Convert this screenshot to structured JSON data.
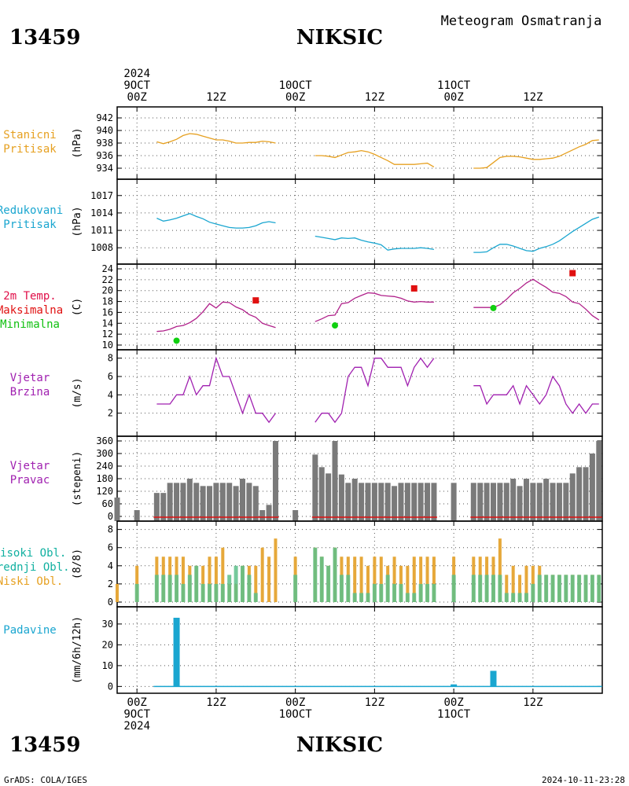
{
  "header": {
    "station_id": "13459",
    "station_name": "NIKSIC",
    "title": "Meteogram Osmatranja"
  },
  "footer": {
    "station_id": "13459",
    "station_name": "NIKSIC",
    "credit": "GrADS: COLA/IGES",
    "timestamp": "2024-10-11-23:28"
  },
  "time_axis": {
    "top_labels": [
      {
        "lines": [
          "2024",
          "9OCT",
          "00Z"
        ],
        "hour": 0
      },
      {
        "lines": [
          "12Z"
        ],
        "hour": 12
      },
      {
        "lines": [
          "10OCT",
          "00Z"
        ],
        "hour": 24
      },
      {
        "lines": [
          "12Z"
        ],
        "hour": 36
      },
      {
        "lines": [
          "11OCT",
          "00Z"
        ],
        "hour": 48
      },
      {
        "lines": [
          "12Z"
        ],
        "hour": 60
      }
    ],
    "bottom_labels": [
      {
        "lines": [
          "00Z",
          "9OCT",
          "2024"
        ],
        "hour": 0
      },
      {
        "lines": [
          "12Z"
        ],
        "hour": 12
      },
      {
        "lines": [
          "00Z",
          "10OCT"
        ],
        "hour": 24
      },
      {
        "lines": [
          "12Z"
        ],
        "hour": 36
      },
      {
        "lines": [
          "00Z",
          "11OCT"
        ],
        "hour": 48
      },
      {
        "lines": [
          "12Z"
        ],
        "hour": 60
      }
    ],
    "range_hours": [
      -3,
      70.5
    ]
  },
  "panels": {
    "pressure": {
      "labels": [
        "Stanicni",
        "Pritisak"
      ],
      "unit": "(hPa)",
      "color": "#e6a020"
    },
    "slp": {
      "labels": [
        "Redukovani",
        "Pritisak"
      ],
      "unit": "(hPa)",
      "color": "#1aa6d0"
    },
    "temp": {
      "labels": [
        "2m Temp.",
        "Maksimalna",
        "Minimalna"
      ],
      "unit": "(C)",
      "colors": [
        "#e0104a",
        "#e01010",
        "#10c010"
      ],
      "line_color": "#b0208a"
    },
    "wspd": {
      "labels": [
        "Vjetar",
        "Brzina"
      ],
      "unit": "(m/s)",
      "color": "#a020b0"
    },
    "wdir": {
      "labels": [
        "Vjetar",
        "Pravac"
      ],
      "unit": "(stepeni)",
      "color": "#a020b0"
    },
    "cloud": {
      "labels": [
        "Visoki Obl.",
        "Srednji Obl.",
        "Niski Obl."
      ],
      "unit": "(8/8)",
      "colors": [
        "#10b0a0",
        "#10b0a0",
        "#e6a020"
      ]
    },
    "precip": {
      "labels": [
        "Padavine"
      ],
      "unit": "(mm/6h/12h)",
      "color": "#1aa6d0"
    }
  },
  "chart_data": [
    {
      "type": "line",
      "name": "Stanicni Pritisak",
      "ylabel": "(hPa)",
      "ylim": [
        933,
        943
      ],
      "yticks": [
        934,
        936,
        938,
        940,
        942
      ],
      "segments": [
        {
          "x": [
            3,
            4,
            5,
            6,
            7,
            8,
            9,
            10,
            11,
            12,
            13,
            14,
            15,
            16,
            17,
            18,
            19,
            20,
            21
          ],
          "y": [
            938.2,
            937.9,
            938.2,
            938.6,
            939.2,
            939.5,
            939.4,
            939.1,
            938.8,
            938.5,
            938.5,
            938.3,
            938.0,
            938.0,
            938.1,
            938.1,
            938.3,
            938.2,
            938.0
          ]
        },
        {
          "x": [
            27,
            28,
            29,
            30,
            31,
            32,
            33,
            34,
            35,
            36,
            37,
            38,
            39,
            40,
            41,
            42,
            43,
            44,
            45
          ],
          "y": [
            936.0,
            936.0,
            935.9,
            935.7,
            936.1,
            936.5,
            936.6,
            936.8,
            936.6,
            936.2,
            935.7,
            935.2,
            934.6,
            934.6,
            934.6,
            934.6,
            934.7,
            934.8,
            934.2
          ]
        },
        {
          "x": [
            51,
            52,
            53,
            54,
            55,
            56,
            57,
            58,
            59,
            60,
            61,
            62,
            63,
            64,
            65,
            66,
            67,
            68,
            69,
            70
          ],
          "y": [
            934.0,
            934.0,
            934.1,
            934.9,
            935.7,
            935.9,
            935.9,
            935.8,
            935.6,
            935.4,
            935.4,
            935.5,
            935.6,
            935.9,
            936.4,
            936.9,
            937.4,
            937.8,
            938.4,
            938.5
          ]
        }
      ]
    },
    {
      "type": "line",
      "name": "Redukovani Pritisak",
      "ylabel": "(hPa)",
      "ylim": [
        1006,
        1019
      ],
      "yticks": [
        1008,
        1011,
        1014,
        1017
      ],
      "segments": [
        {
          "x": [
            3,
            4,
            5,
            6,
            7,
            8,
            9,
            10,
            11,
            12,
            13,
            14,
            15,
            16,
            17,
            18,
            19,
            20,
            21
          ],
          "y": [
            1013.1,
            1012.6,
            1012.8,
            1013.1,
            1013.5,
            1013.9,
            1013.4,
            1013.0,
            1012.4,
            1012.1,
            1011.8,
            1011.5,
            1011.4,
            1011.4,
            1011.5,
            1011.8,
            1012.3,
            1012.5,
            1012.3
          ]
        },
        {
          "x": [
            27,
            28,
            29,
            30,
            31,
            32,
            33,
            34,
            35,
            36,
            37,
            38,
            39,
            40,
            41,
            42,
            43,
            44,
            45
          ],
          "y": [
            1010.0,
            1009.8,
            1009.6,
            1009.4,
            1009.7,
            1009.6,
            1009.7,
            1009.3,
            1009.0,
            1008.8,
            1008.5,
            1007.6,
            1007.8,
            1007.9,
            1007.9,
            1007.9,
            1008.0,
            1007.9,
            1007.7
          ]
        },
        {
          "x": [
            51,
            52,
            53,
            54,
            55,
            56,
            57,
            58,
            59,
            60,
            61,
            62,
            63,
            64,
            65,
            66,
            67,
            68,
            69,
            70
          ],
          "y": [
            1007.2,
            1007.2,
            1007.3,
            1008.0,
            1008.6,
            1008.6,
            1008.3,
            1007.9,
            1007.5,
            1007.4,
            1007.9,
            1008.2,
            1008.6,
            1009.2,
            1010.0,
            1010.8,
            1011.5,
            1012.2,
            1012.9,
            1013.3
          ]
        }
      ]
    },
    {
      "type": "line",
      "name": "2m Temp.",
      "ylabel": "(C)",
      "ylim": [
        10,
        24
      ],
      "yticks": [
        10,
        12,
        14,
        16,
        18,
        20,
        22,
        24
      ],
      "segments": [
        {
          "x": [
            3,
            4,
            5,
            6,
            7,
            8,
            9,
            10,
            11,
            12,
            13,
            14,
            15,
            16,
            17,
            18,
            19,
            20,
            21
          ],
          "y": [
            12.5,
            12.6,
            12.9,
            13.4,
            13.6,
            14.1,
            14.9,
            16.1,
            17.6,
            16.8,
            17.9,
            17.8,
            17.0,
            16.5,
            15.6,
            15.1,
            14.0,
            13.6,
            13.2
          ]
        },
        {
          "x": [
            27,
            28,
            29,
            30,
            31,
            32,
            33,
            34,
            35,
            36,
            37,
            38,
            39,
            40,
            41,
            42,
            43,
            44,
            45
          ],
          "y": [
            14.3,
            14.8,
            15.4,
            15.5,
            17.6,
            17.8,
            18.6,
            19.1,
            19.6,
            19.5,
            19.1,
            19.0,
            18.9,
            18.6,
            18.1,
            17.9,
            18.0,
            17.9,
            17.9
          ]
        },
        {
          "x": [
            51,
            52,
            53,
            54,
            55,
            56,
            57,
            58,
            59,
            60,
            61,
            62,
            63,
            64,
            65,
            66,
            67,
            68,
            69,
            70
          ],
          "y": [
            16.9,
            16.9,
            16.9,
            16.9,
            17.4,
            18.4,
            19.6,
            20.4,
            21.4,
            22.1,
            21.3,
            20.6,
            19.7,
            19.5,
            18.9,
            17.9,
            17.6,
            16.6,
            15.4,
            14.6
          ]
        }
      ],
      "max_points": [
        {
          "x": 18,
          "y": 18.2
        },
        {
          "x": 42,
          "y": 20.4
        },
        {
          "x": 66,
          "y": 23.2
        }
      ],
      "min_points": [
        {
          "x": 6,
          "y": 10.8
        },
        {
          "x": 30,
          "y": 13.6
        },
        {
          "x": 54,
          "y": 16.8
        }
      ]
    },
    {
      "type": "line",
      "name": "Vjetar Brzina",
      "ylabel": "(m/s)",
      "ylim": [
        0,
        8.4
      ],
      "yticks": [
        2,
        4,
        6,
        8
      ],
      "segments": [
        {
          "x": [
            3,
            4,
            5,
            6,
            7,
            8,
            9,
            10,
            11,
            12,
            13,
            14,
            15,
            16,
            17,
            18,
            19,
            20,
            21
          ],
          "y": [
            3,
            3,
            3,
            4,
            4,
            6,
            4,
            5,
            5,
            8,
            6,
            6,
            4,
            2,
            4,
            2,
            2,
            1,
            2
          ]
        },
        {
          "x": [
            27,
            28,
            29,
            30,
            31,
            32,
            33,
            34,
            35,
            36,
            37,
            38,
            39,
            40,
            41,
            42,
            43,
            44,
            45
          ],
          "y": [
            1,
            2,
            2,
            1,
            2,
            6,
            7,
            7,
            5,
            8,
            8,
            7,
            7,
            7,
            5,
            7,
            8,
            7,
            8
          ]
        },
        {
          "x": [
            51,
            52,
            53,
            54,
            55,
            56,
            57,
            58,
            59,
            60,
            61,
            62,
            63,
            64,
            65,
            66,
            67,
            68,
            69,
            70
          ],
          "y": [
            5,
            5,
            3,
            4,
            4,
            4,
            5,
            3,
            5,
            4,
            3,
            4,
            6,
            5,
            3,
            2,
            3,
            2,
            3,
            3
          ]
        }
      ]
    },
    {
      "type": "bar",
      "name": "Vjetar Pravac",
      "ylabel": "(stepeni)",
      "ylim": [
        0,
        360
      ],
      "yticks": [
        0,
        60,
        120,
        180,
        240,
        300,
        360
      ],
      "x": [
        -3,
        0,
        3,
        4,
        5,
        6,
        7,
        8,
        9,
        10,
        11,
        12,
        13,
        14,
        15,
        16,
        17,
        18,
        19,
        20,
        21,
        24,
        27,
        28,
        29,
        30,
        31,
        32,
        33,
        34,
        35,
        36,
        37,
        38,
        39,
        40,
        41,
        42,
        43,
        44,
        45,
        48,
        51,
        52,
        53,
        54,
        55,
        56,
        57,
        58,
        59,
        60,
        61,
        62,
        63,
        64,
        65,
        66,
        67,
        68,
        69,
        70
      ],
      "values": [
        90,
        30,
        112,
        112,
        160,
        160,
        160,
        180,
        160,
        145,
        145,
        160,
        160,
        160,
        145,
        180,
        160,
        145,
        30,
        55,
        360,
        30,
        295,
        235,
        205,
        360,
        200,
        160,
        180,
        160,
        160,
        160,
        160,
        160,
        145,
        160,
        160,
        160,
        160,
        160,
        160,
        160,
        160,
        160,
        160,
        160,
        160,
        160,
        180,
        145,
        180,
        160,
        160,
        180,
        160,
        160,
        160,
        205,
        235,
        235,
        300,
        360
      ]
    },
    {
      "type": "bar",
      "name": "Oblacnost",
      "ylabel": "(8/8)",
      "ylim": [
        0,
        8.4
      ],
      "yticks": [
        0,
        2,
        4,
        6,
        8
      ],
      "series": [
        {
          "name": "Niski Obl.",
          "x": [
            -3,
            0,
            3,
            4,
            5,
            6,
            7,
            8,
            9,
            10,
            11,
            12,
            13,
            14,
            15,
            16,
            17,
            18,
            19,
            20,
            21,
            24,
            27,
            28,
            29,
            30,
            31,
            32,
            33,
            34,
            35,
            36,
            37,
            38,
            39,
            40,
            41,
            42,
            43,
            44,
            45,
            48,
            51,
            52,
            53,
            54,
            55,
            56,
            57,
            58,
            59,
            60,
            61,
            62,
            63,
            64,
            65,
            66,
            67,
            68,
            69,
            70
          ],
          "values": [
            2,
            4,
            5,
            5,
            5,
            5,
            5,
            4,
            4,
            4,
            5,
            5,
            6,
            2,
            2,
            4,
            4,
            4,
            6,
            5,
            7,
            5,
            6,
            5,
            4,
            6,
            5,
            5,
            5,
            5,
            4,
            5,
            5,
            4,
            5,
            4,
            4,
            5,
            5,
            5,
            5,
            5,
            5,
            5,
            5,
            5,
            7,
            3,
            4,
            3,
            4,
            4,
            4,
            3,
            3,
            3,
            3,
            3,
            3,
            3,
            3,
            3
          ]
        },
        {
          "name": "Srednji Obl.",
          "x": [
            0,
            3,
            4,
            5,
            6,
            7,
            8,
            9,
            10,
            11,
            12,
            13,
            14,
            15,
            16,
            17,
            18,
            24,
            27,
            28,
            29,
            30,
            31,
            32,
            33,
            34,
            35,
            36,
            37,
            38,
            39,
            40,
            41,
            42,
            43,
            44,
            45,
            48,
            51,
            52,
            53,
            54,
            55,
            56,
            57,
            58,
            59,
            60,
            61,
            62,
            63,
            64,
            65,
            66,
            67,
            68,
            69,
            70
          ],
          "values": [
            2,
            3,
            3,
            3,
            3,
            2,
            3,
            4,
            2,
            2,
            2,
            2,
            3,
            4,
            4,
            3,
            1,
            3,
            6,
            5,
            4,
            6,
            3,
            3,
            1,
            1,
            1,
            2,
            2,
            3,
            2,
            2,
            1,
            1,
            2,
            2,
            2,
            3,
            3,
            3,
            3,
            3,
            3,
            1,
            1,
            1,
            1,
            2,
            3,
            3,
            3,
            3,
            3,
            3,
            3,
            3,
            3,
            3
          ]
        }
      ]
    },
    {
      "type": "bar",
      "name": "Padavine",
      "ylabel": "(mm/6h/12h)",
      "ylim": [
        -1,
        36
      ],
      "yticks": [
        0,
        10,
        20,
        30
      ],
      "x": [
        6,
        48,
        54
      ],
      "values": [
        33,
        1,
        7.5
      ]
    }
  ]
}
